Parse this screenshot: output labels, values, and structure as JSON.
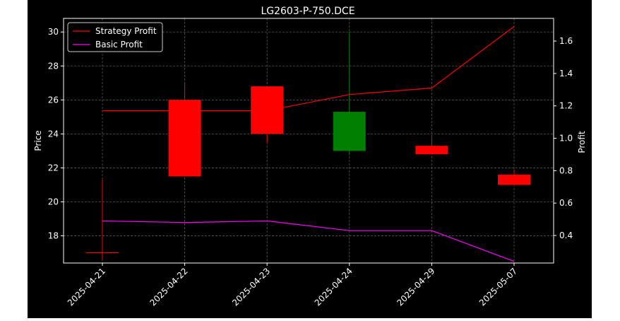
{
  "chart_data": {
    "type": "candlestick",
    "title": "LG2603-P-750.DCE",
    "categories": [
      "2025-04-21",
      "2025-04-22",
      "2025-04-23",
      "2025-04-24",
      "2025-04-29",
      "2025-05-07"
    ],
    "ohlc": [
      {
        "date": "2025-04-21",
        "open": 17.0,
        "high": 21.3,
        "low": 16.6,
        "close": 17.0,
        "color": "red"
      },
      {
        "date": "2025-04-22",
        "open": 26.0,
        "high": 27.0,
        "low": 21.5,
        "close": 21.5,
        "color": "red"
      },
      {
        "date": "2025-04-23",
        "open": 26.8,
        "high": 26.8,
        "low": 23.5,
        "close": 24.0,
        "color": "red"
      },
      {
        "date": "2025-04-24",
        "open": 23.0,
        "high": 30.0,
        "low": 22.8,
        "close": 25.3,
        "color": "green"
      },
      {
        "date": "2025-04-29",
        "open": 23.3,
        "high": 23.8,
        "low": 22.8,
        "close": 22.8,
        "color": "red"
      },
      {
        "date": "2025-05-07",
        "open": 21.6,
        "high": 21.9,
        "low": 21.0,
        "close": 21.0,
        "color": "red"
      }
    ],
    "left_axis": {
      "label": "Price",
      "ticks": [
        18,
        20,
        22,
        24,
        26,
        28,
        30
      ],
      "ylim": [
        16.4,
        30.8
      ]
    },
    "right_axis": {
      "label": "Profit",
      "ticks": [
        "0.4",
        "0.6",
        "0.8",
        "1.0",
        "1.2",
        "1.4",
        "1.6"
      ],
      "ylim": [
        0.23,
        1.74
      ]
    },
    "series": [
      {
        "name": "Strategy Profit",
        "color": "#ff0000",
        "values": [
          1.17,
          1.17,
          1.17,
          1.27,
          1.31,
          1.69
        ]
      },
      {
        "name": "Basic Profit",
        "color": "#ff00ff",
        "values": [
          0.49,
          0.48,
          0.49,
          0.43,
          0.43,
          0.24
        ]
      }
    ],
    "grid": true,
    "legend": "top-left",
    "colors": {
      "background": "#000000",
      "up": "#008000",
      "down": "#ff0000",
      "grid": "#555555"
    }
  }
}
